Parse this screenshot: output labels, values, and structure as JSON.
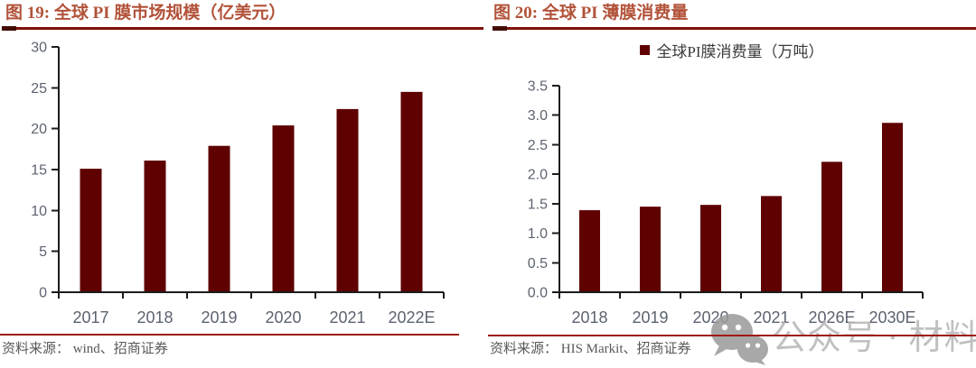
{
  "theme": {
    "bar_color": "#5E0100",
    "title_color": "#B2533A",
    "title_rule_color": "#7E100A",
    "rule_cap_color": "#430D07",
    "divider_color": "#9E1B10",
    "axis_color": "#1C1C1C",
    "tick_label_color": "#5C6370",
    "source_color": "#5A5858",
    "watermark_color": "#B6B6B6",
    "watermark_icon_color": "#9A9A9A"
  },
  "figures": [
    {
      "title": "图 19:  全球 PI 膜市场规模（亿美元）",
      "source": "资料来源：  wind、招商证券"
    },
    {
      "title": "图 20:  全球 PI 薄膜消费量",
      "legend": "全球PI膜消费量（万吨）",
      "source": "资料来源：  HIS Markit、招商证券"
    }
  ],
  "watermark": {
    "text": "公众号 · 材料圈",
    "icon": "wechat-icon"
  },
  "chart_data": [
    {
      "type": "bar",
      "title": "图 19: 全球 PI 膜市场规模（亿美元）",
      "categories": [
        "2017",
        "2018",
        "2019",
        "2020",
        "2021",
        "2022E"
      ],
      "values": [
        15.1,
        16.1,
        17.9,
        20.4,
        22.4,
        24.5
      ],
      "ylabel": "亿美元",
      "ylim": [
        0,
        30
      ],
      "yticks": [
        0,
        5,
        10,
        15,
        20,
        25,
        30
      ],
      "ytick_labels": [
        "0",
        "5",
        "10",
        "15",
        "20",
        "25",
        "30"
      ],
      "grid": false,
      "legend_position": "none",
      "source": "资料来源：wind、招商证券"
    },
    {
      "type": "bar",
      "title": "图 20: 全球 PI 薄膜消费量",
      "categories": [
        "2018",
        "2019",
        "2020",
        "2021",
        "2026E",
        "2030E"
      ],
      "values": [
        1.39,
        1.45,
        1.48,
        1.63,
        2.21,
        2.87
      ],
      "series_name": "全球PI膜消费量（万吨）",
      "ylabel": "万吨",
      "ylim": [
        0,
        3.5
      ],
      "yticks": [
        0.0,
        0.5,
        1.0,
        1.5,
        2.0,
        2.5,
        3.0,
        3.5
      ],
      "ytick_labels": [
        "0.0",
        "0.5",
        "1.0",
        "1.5",
        "2.0",
        "2.5",
        "3.0",
        "3.5"
      ],
      "grid": false,
      "legend_position": "top-center",
      "source": "资料来源：HIS Markit、招商证券"
    }
  ]
}
